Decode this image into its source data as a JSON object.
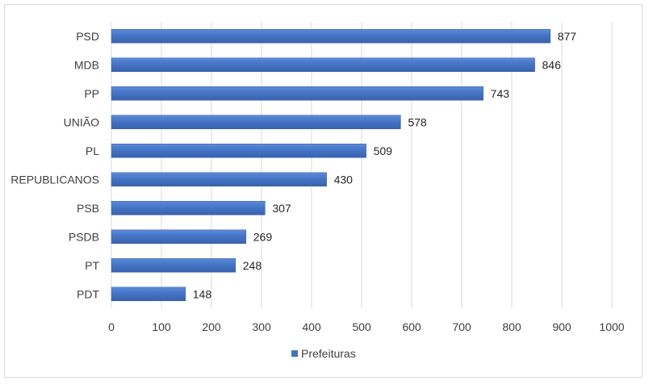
{
  "chart_data": {
    "type": "bar",
    "orientation": "horizontal",
    "categories": [
      "PSD",
      "MDB",
      "PP",
      "UNIÃO",
      "PL",
      "REPUBLICANOS",
      "PSB",
      "PSDB",
      "PT",
      "PDT"
    ],
    "series": [
      {
        "name": "Prefeituras",
        "values": [
          877,
          846,
          743,
          578,
          509,
          430,
          307,
          269,
          248,
          148
        ],
        "color": "#4472c4"
      }
    ],
    "title": "",
    "xlabel": "",
    "ylabel": "",
    "xlim": [
      0,
      1000
    ],
    "xticks": [
      0,
      100,
      200,
      300,
      400,
      500,
      600,
      700,
      800,
      900,
      1000
    ],
    "grid": true,
    "legend": "bottom-center",
    "data_labels": true
  }
}
